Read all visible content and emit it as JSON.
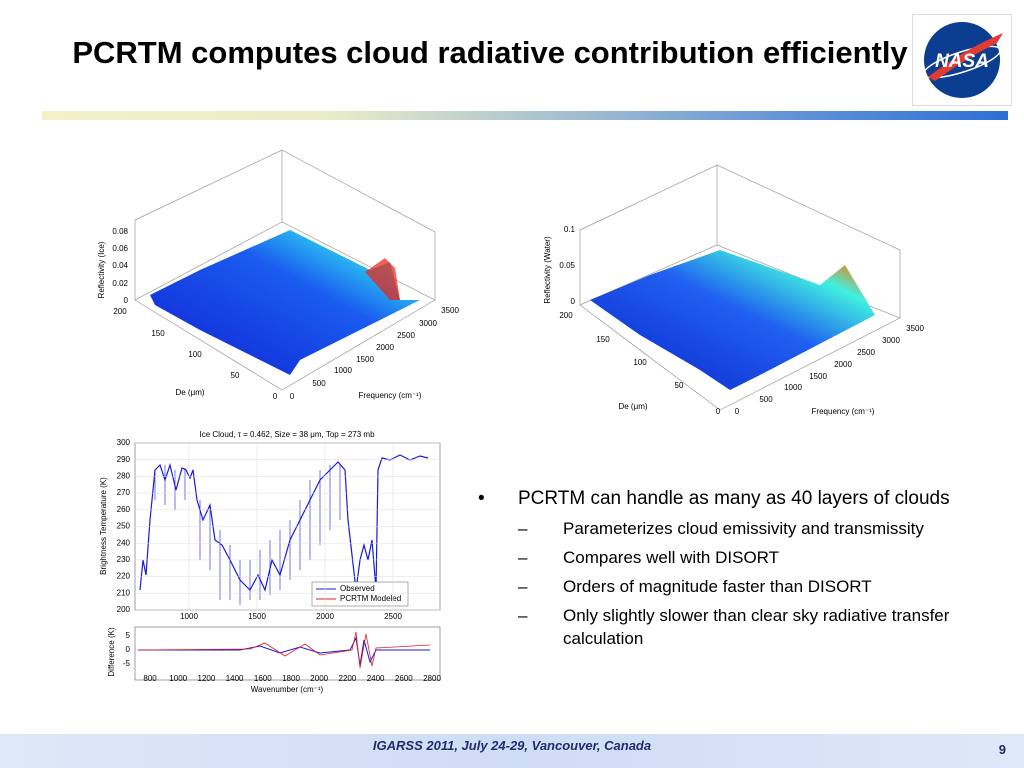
{
  "header": {
    "title": "PCRTM computes cloud radiative contribution efficiently",
    "logo": "NASA"
  },
  "figures": {
    "surface_ice": {
      "zticks": [
        "0.08",
        "0.06",
        "0.04",
        "0.02",
        "0"
      ],
      "zlabel": "Reflectivity (Ice)",
      "deticks": [
        "200",
        "150",
        "100",
        "50",
        "0"
      ],
      "delabel": "De (μm)",
      "fticks": [
        "0",
        "500",
        "1000",
        "1500",
        "2000",
        "2500",
        "3000",
        "3500"
      ],
      "flabel": "Frequency (cm⁻¹)"
    },
    "surface_water": {
      "zticks": [
        "0.1",
        "0.05",
        "0"
      ],
      "zlabel": "Reflectivity (Water)",
      "deticks": [
        "200",
        "150",
        "100",
        "50",
        "0"
      ],
      "delabel": "De (μm)",
      "fticks": [
        "0",
        "500",
        "1000",
        "1500",
        "2000",
        "2500",
        "3000",
        "3500"
      ],
      "flabel": "Frequency (cm⁻¹)"
    },
    "spectrum": {
      "title": "Ice Cloud, τ = 0.462, Size = 38  μm, Top = 273 mb",
      "ylabel": "Brightness Temperature (K)",
      "yticks": [
        "300",
        "290",
        "280",
        "270",
        "260",
        "250",
        "240",
        "230",
        "220",
        "210",
        "200"
      ],
      "xticks": [
        "1000",
        "1500",
        "2000",
        "2500"
      ],
      "legend": [
        "Observed",
        "PCRTM Modeled"
      ],
      "diff_ylabel": "Difference (K)",
      "diff_yticks": [
        "5",
        "0",
        "-5"
      ],
      "diff_xticks": [
        "800",
        "1000",
        "1200",
        "1400",
        "1600",
        "1800",
        "2000",
        "2200",
        "2400",
        "2600",
        "2800"
      ],
      "xlabel": "Wavenumber (cm⁻¹)"
    }
  },
  "bullets": {
    "text": "PCRTM can handle as many as 40 layers of clouds",
    "sub": [
      "Parameterizes cloud emissivity and transmissity",
      "Compares well with DISORT",
      "Orders of magnitude faster than DISORT",
      "Only slightly slower than clear sky radiative transfer calculation"
    ]
  },
  "footer": {
    "text": "IGARSS 2011, July 24-29, Vancouver, Canada",
    "page": "9"
  }
}
